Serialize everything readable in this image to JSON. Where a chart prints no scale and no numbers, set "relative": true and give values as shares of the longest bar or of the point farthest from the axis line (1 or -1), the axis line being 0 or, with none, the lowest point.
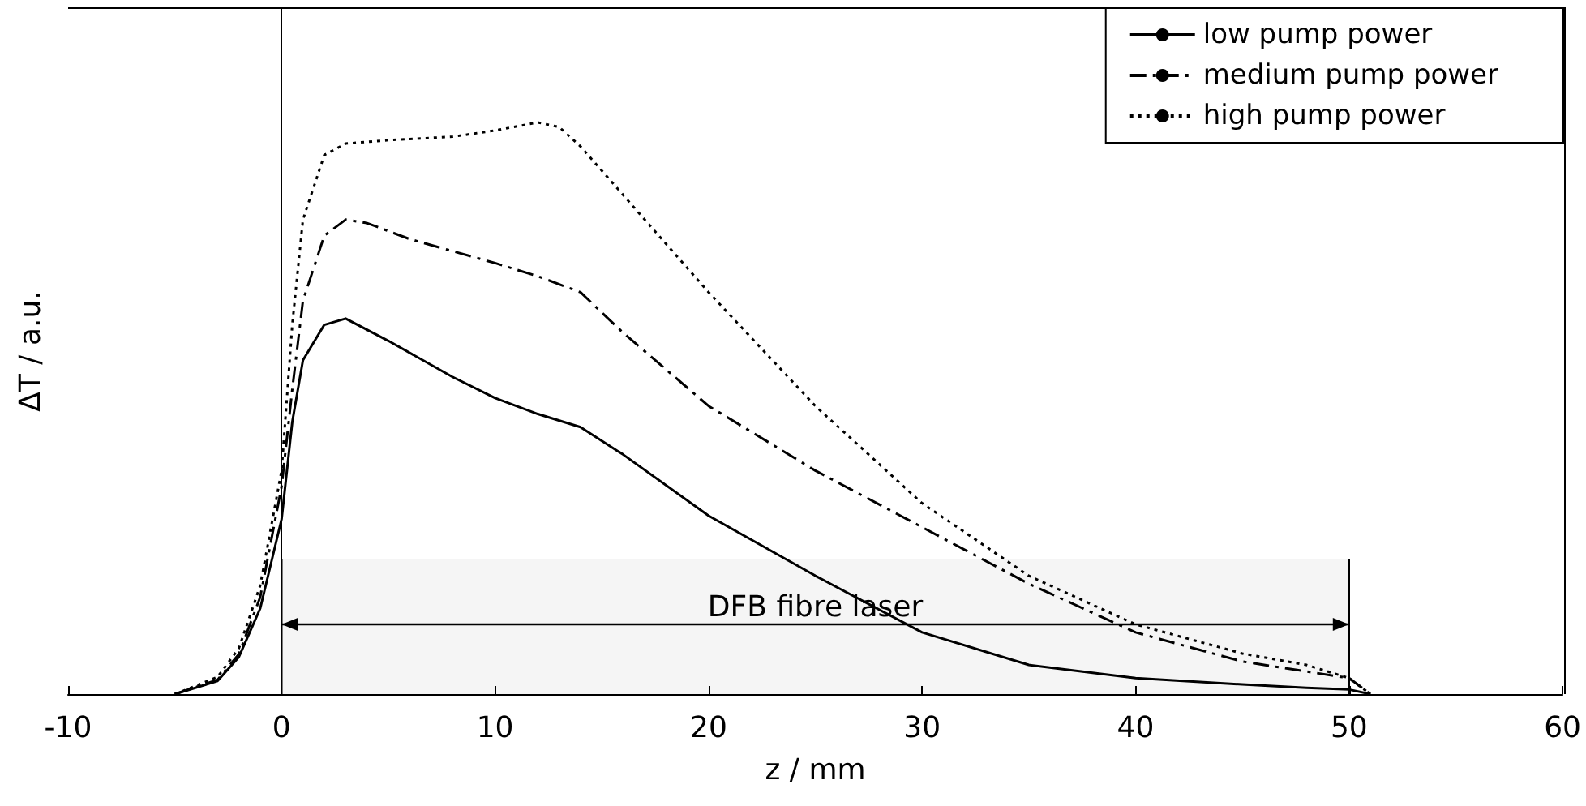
{
  "chart_data": {
    "type": "line",
    "relative": true,
    "xlabel": "z / mm",
    "ylabel": "ΔT / a.u.",
    "xlim": [
      -10,
      60
    ],
    "xticks": [
      -10,
      0,
      10,
      20,
      30,
      40,
      50,
      60
    ],
    "tick_labels": "x",
    "legend": "top right",
    "marker": "none",
    "bands": [
      {
        "axis": "x",
        "from": 0,
        "to": 50,
        "label": "DFB fibre laser"
      }
    ],
    "series": [
      {
        "name": "low pump power",
        "color": "#000000",
        "line_style": "solid",
        "x": [
          -5,
          -3,
          -2,
          -1,
          0,
          0.5,
          1,
          2,
          3,
          5,
          8,
          10,
          12,
          14,
          16,
          20,
          25,
          30,
          35,
          40,
          45,
          48,
          50,
          51
        ],
        "values": [
          0,
          0.023,
          0.065,
          0.15,
          0.306,
          0.476,
          0.584,
          0.646,
          0.657,
          0.618,
          0.555,
          0.518,
          0.49,
          0.467,
          0.419,
          0.312,
          0.207,
          0.108,
          0.051,
          0.028,
          0.017,
          0.011,
          0.008,
          0
        ]
      },
      {
        "name": "medium pump power",
        "color": "#000000",
        "line_style": "dashed",
        "x": [
          -5,
          -3,
          -2,
          -1,
          0,
          0.5,
          1,
          2,
          3,
          4,
          6,
          10,
          12,
          14,
          16,
          20,
          25,
          30,
          35,
          40,
          45,
          50,
          51
        ],
        "values": [
          0,
          0.025,
          0.07,
          0.17,
          0.363,
          0.533,
          0.688,
          0.802,
          0.83,
          0.824,
          0.796,
          0.754,
          0.731,
          0.703,
          0.632,
          0.504,
          0.391,
          0.292,
          0.193,
          0.108,
          0.057,
          0.028,
          0
        ]
      },
      {
        "name": "high pump power",
        "color": "#000000",
        "line_style": "dotted",
        "x": [
          -5,
          -3,
          -2,
          -1,
          0,
          0.5,
          1,
          2,
          3,
          5,
          8,
          10,
          12,
          13,
          14,
          16,
          20,
          25,
          30,
          35,
          40,
          45,
          48,
          50,
          51
        ],
        "values": [
          0,
          0.03,
          0.08,
          0.19,
          0.391,
          0.646,
          0.83,
          0.943,
          0.963,
          0.969,
          0.975,
          0.986,
          1,
          0.992,
          0.958,
          0.873,
          0.703,
          0.504,
          0.334,
          0.207,
          0.122,
          0.071,
          0.051,
          0.028,
          0
        ]
      }
    ]
  }
}
